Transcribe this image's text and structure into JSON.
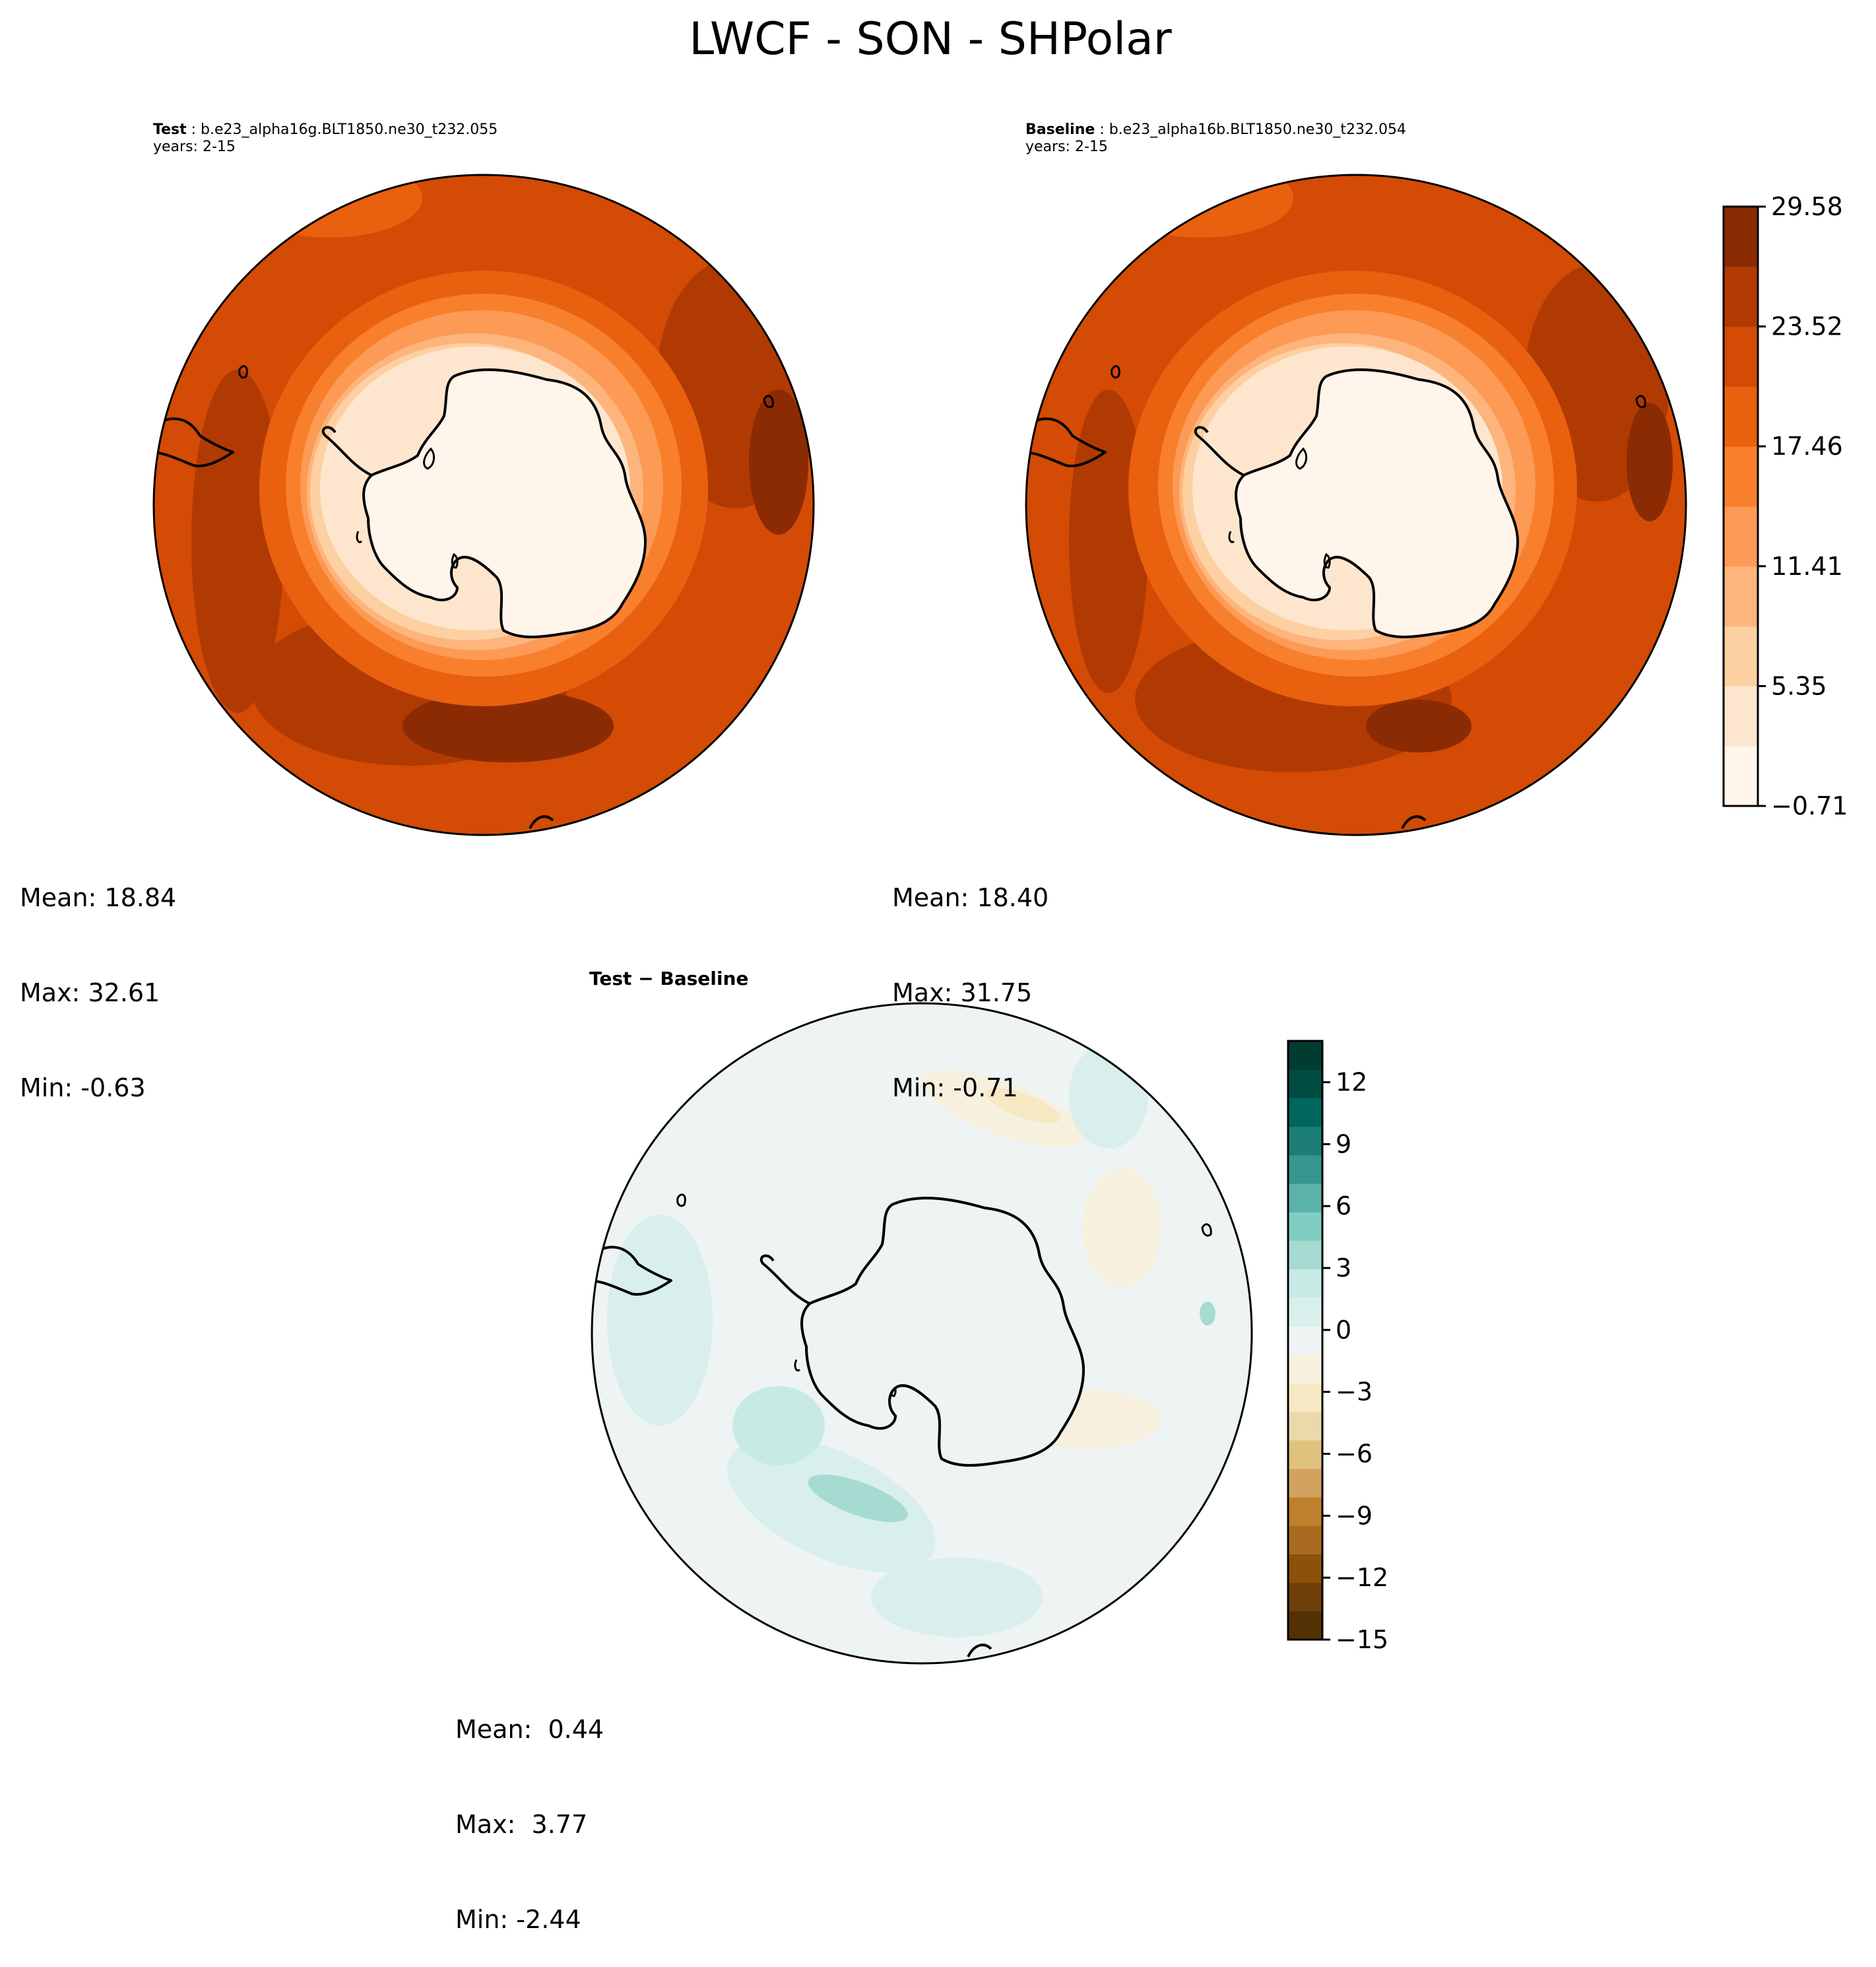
{
  "title": "LWCF - SON - SHPolar",
  "panels": [
    {
      "id": "test",
      "label_bold": "Test",
      "label_rest": " : b.e23_alpha16g.BLT1850.ne30_t232.055",
      "years": "years: 2-15",
      "stats": {
        "mean": "Mean: 18.84",
        "max": "Max: 32.61",
        "min": "Min: -0.63"
      }
    },
    {
      "id": "baseline",
      "label_bold": "Baseline",
      "label_rest": " : b.e23_alpha16b.BLT1850.ne30_t232.054",
      "years": "years: 2-15",
      "stats": {
        "mean": "Mean: 18.40",
        "max": "Max: 31.75",
        "min": "Min: -0.71"
      }
    },
    {
      "id": "diff",
      "label_bold": "Test − Baseline",
      "label_rest": "",
      "years": "",
      "stats": {
        "mean": "Mean:  0.44",
        "max": "Max:  3.77",
        "min": "Min: -2.44"
      }
    }
  ],
  "colorbars": {
    "main": {
      "ticks": [
        "−0.71",
        "5.35",
        "11.41",
        "17.46",
        "23.52",
        "29.58"
      ],
      "colors": [
        "#fff5eb",
        "#fee6ce",
        "#fdd0a2",
        "#fdb57d",
        "#fd9a55",
        "#f87f2c",
        "#e9600f",
        "#d34b04",
        "#b13a03",
        "#8b2b04"
      ]
    },
    "diff": {
      "ticks": [
        "−15",
        "−12",
        "−9",
        "−6",
        "−3",
        "0",
        "3",
        "6",
        "9",
        "12"
      ],
      "colors": [
        "#543005",
        "#6f3f0a",
        "#8c510a",
        "#a86b1f",
        "#bf812d",
        "#d1a35e",
        "#dfc27d",
        "#ebd9aa",
        "#f6e8c3",
        "#f7f0de",
        "#eef4f3",
        "#d8efec",
        "#c7eae5",
        "#a6dbd2",
        "#80cdc1",
        "#5ab2a8",
        "#35978f",
        "#1b7d74",
        "#01665e",
        "#014d42",
        "#003c30"
      ]
    }
  }
}
